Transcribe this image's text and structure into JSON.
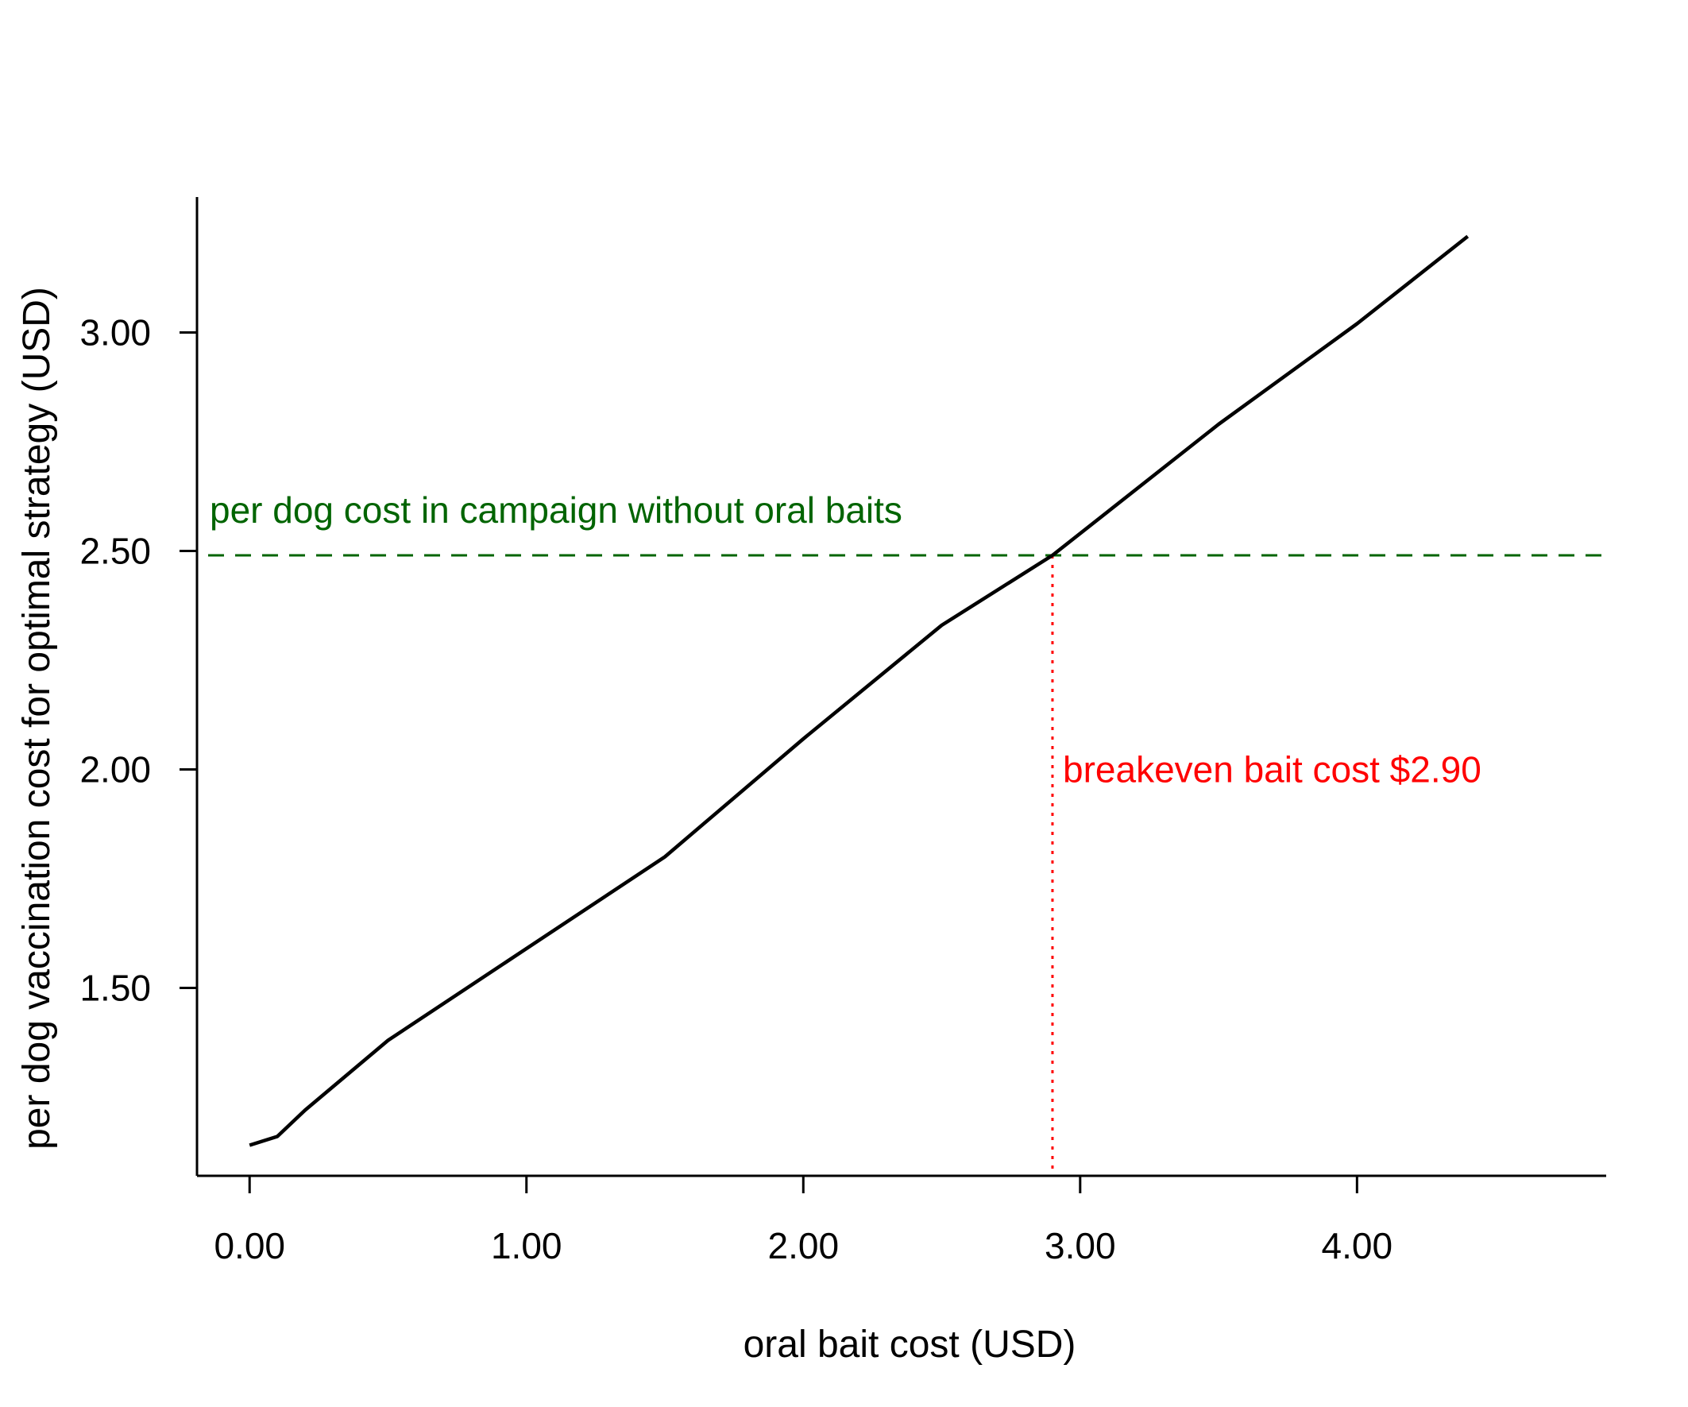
{
  "chart_data": {
    "type": "line",
    "title": "",
    "xlabel": "oral bait cost (USD)",
    "ylabel": "per dog vaccination cost for optimal strategy (USD)",
    "xlim": [
      -0.19,
      4.9
    ],
    "ylim": [
      1.07,
      3.31
    ],
    "xticks": [
      0,
      1,
      2,
      3,
      4
    ],
    "xtick_labels": [
      "0.00",
      "1.00",
      "2.00",
      "3.00",
      "4.00"
    ],
    "yticks": [
      1.5,
      2.0,
      2.5,
      3.0
    ],
    "ytick_labels": [
      "1.50",
      "2.00",
      "2.50",
      "3.00"
    ],
    "grid": false,
    "series": [
      {
        "color": "#000000",
        "x": [
          0.0,
          0.1,
          0.2,
          0.5,
          1.0,
          1.5,
          2.0,
          2.5,
          2.9,
          3.3,
          3.5,
          4.0,
          4.4
        ],
        "y": [
          1.14,
          1.16,
          1.22,
          1.38,
          1.59,
          1.8,
          2.07,
          2.33,
          2.49,
          2.69,
          2.79,
          3.02,
          3.22
        ]
      }
    ],
    "reference_lines": [
      {
        "orientation": "horizontal",
        "y": 2.49,
        "style": "dashed",
        "color": "#006400",
        "label": "per dog cost in campaign without oral baits"
      },
      {
        "orientation": "vertical",
        "x": 2.9,
        "y_top": 2.49,
        "style": "dotted",
        "color": "#ff0000",
        "label": "breakeven bait cost $2.90"
      }
    ]
  }
}
